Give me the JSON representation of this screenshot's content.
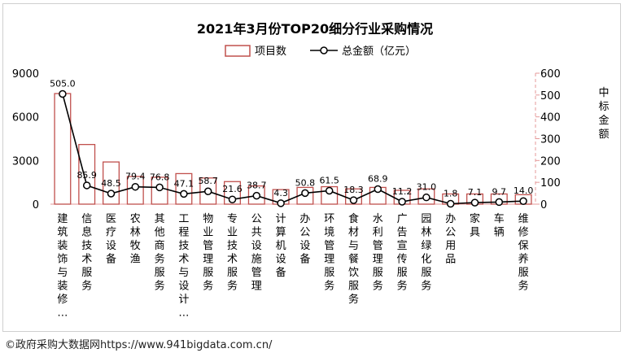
{
  "credit": "©政府采购大数据网https://www.941bigdata.com.cn/",
  "chart_data": {
    "type": "bar",
    "title": "2021年3月份TOP20细分行业采购情况",
    "categories": [
      "建筑装饰与装修…",
      "信息技术服务",
      "医疗设备",
      "农林牧渔",
      "其他商务服务",
      "工程技术与设计…",
      "物业管理服务",
      "专业技术服务",
      "公共设施管理",
      "计算机设备",
      "办公设备",
      "环境管理服务",
      "食材与餐饮服务",
      "水利管理服务",
      "广告宣传服务",
      "园林绿化服务",
      "办公用品",
      "家具",
      "车辆",
      "维修保养服务"
    ],
    "series": [
      {
        "name": "项目数",
        "type": "bar",
        "axis": "left",
        "color": "#c0504d",
        "values": [
          7600,
          4100,
          2900,
          1900,
          1850,
          2100,
          1800,
          1550,
          1250,
          1000,
          1150,
          1200,
          1050,
          1150,
          950,
          1050,
          700,
          700,
          700,
          650
        ]
      },
      {
        "name": "总金额（亿元）",
        "type": "line",
        "axis": "right",
        "color": "#000000",
        "values": [
          505.0,
          85.9,
          48.5,
          79.4,
          76.8,
          47.1,
          58.7,
          21.6,
          38.7,
          4.3,
          50.8,
          61.5,
          18.3,
          68.9,
          11.2,
          31.0,
          1.8,
          7.1,
          9.7,
          14.0
        ]
      }
    ],
    "y_left": {
      "ticks": [
        "0",
        "3000",
        "6000",
        "9000"
      ],
      "range": [
        0,
        9000
      ]
    },
    "y_right": {
      "ticks": [
        "0",
        "100",
        "200",
        "300",
        "400",
        "500",
        "600"
      ],
      "range": [
        0,
        600
      ],
      "label": "中标金额"
    },
    "legend_position": "top-center",
    "grid": false
  }
}
